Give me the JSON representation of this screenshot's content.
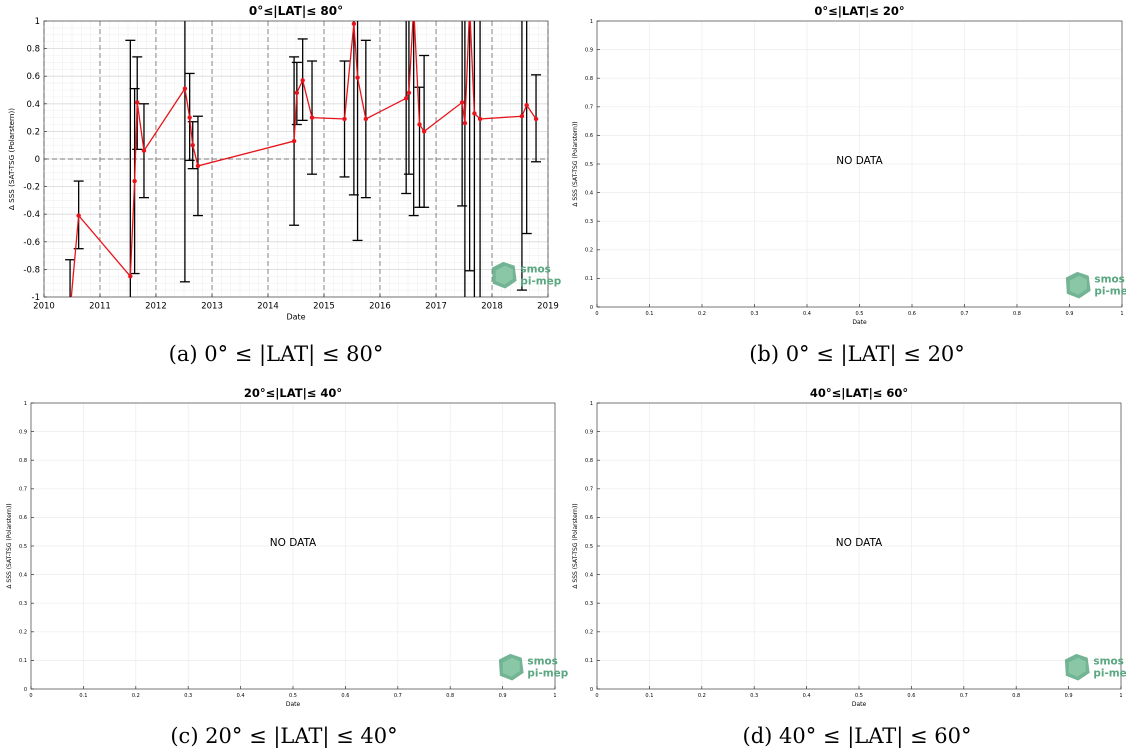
{
  "logo": {
    "line1": "smos",
    "line2": "pi-mep"
  },
  "colors": {
    "series": "#e8141b",
    "errorbar": "#000000",
    "grid_major": "#d9d9d9",
    "grid_minor": "#efefef",
    "date_line": "#7a7a7a",
    "logo": "#5aa781"
  },
  "chart_data": [
    {
      "id": "a",
      "type": "scatter",
      "title": "0°≤|LAT|≤ 80°",
      "xlabel": "Date",
      "ylabel": "Δ SSS (SAT-TSG (Polarstern))",
      "xlim": [
        "2010-01-01",
        "2019-01-01"
      ],
      "ylim": [
        -1,
        1
      ],
      "x_ticks": [
        "2010",
        "2011",
        "2012",
        "2013",
        "2014",
        "2015",
        "2016",
        "2017",
        "2018",
        "2019"
      ],
      "y_ticks": [
        "-1",
        "-0.8",
        "-0.6",
        "-0.4",
        "-0.2",
        "0",
        "0.2",
        "0.4",
        "0.6",
        "0.8",
        "1"
      ],
      "grid": true,
      "reference_line_y": 0,
      "caption": "(a) 0° ≤ |LAT| ≤ 80°",
      "series": [
        {
          "x": [
            "2010-06-20",
            "2010-08-15",
            "2011-07-18",
            "2011-08-15",
            "2011-09-01",
            "2011-10-15",
            "2012-07-08",
            "2012-08-08",
            "2012-08-28",
            "2012-10-01",
            "2014-06-20",
            "2014-07-08",
            "2014-08-15",
            "2014-10-15",
            "2015-05-15",
            "2015-07-15",
            "2015-08-08",
            "2015-10-01",
            "2016-06-20",
            "2016-07-08",
            "2016-08-08",
            "2016-09-15",
            "2016-10-15",
            "2017-06-20",
            "2017-07-08",
            "2017-08-08",
            "2017-09-08",
            "2017-10-15",
            "2018-07-15",
            "2018-08-15",
            "2018-10-15"
          ],
          "y": [
            -1.1,
            -0.41,
            -0.85,
            -0.16,
            0.41,
            0.06,
            0.51,
            0.3,
            0.1,
            -0.05,
            0.13,
            0.48,
            0.57,
            0.3,
            0.29,
            0.98,
            0.59,
            0.29,
            0.44,
            0.48,
            1.1,
            0.25,
            0.2,
            0.41,
            0.26,
            1.1,
            0.33,
            0.29,
            0.31,
            0.39,
            0.29
          ],
          "y_low": [
            -1.5,
            -0.65,
            -1.5,
            -0.83,
            0.07,
            -0.28,
            -0.89,
            -0.01,
            -0.07,
            -0.41,
            -0.48,
            0.25,
            0.28,
            -0.11,
            -0.13,
            -0.26,
            -0.59,
            -0.28,
            -0.25,
            -0.11,
            -0.41,
            -0.35,
            -0.35,
            -0.34,
            -1.2,
            -0.81,
            -1.2,
            -1.2,
            -0.95,
            -0.54,
            -0.02
          ],
          "y_high": [
            -0.73,
            -0.16,
            0.86,
            0.51,
            0.74,
            0.4,
            1.2,
            0.62,
            0.27,
            0.31,
            0.74,
            0.7,
            0.87,
            0.71,
            0.71,
            1.2,
            1.2,
            0.86,
            1.2,
            1.2,
            1.2,
            0.52,
            0.75,
            1.2,
            1.2,
            1.2,
            1.2,
            1.2,
            1.2,
            1.2,
            0.61
          ]
        }
      ]
    },
    {
      "id": "b",
      "type": "scatter",
      "title": "0°≤|LAT|≤ 20°",
      "xlabel": "Date",
      "ylabel": "Δ SSS (SAT-TSG (Polarstern))",
      "xlim": [
        0,
        1
      ],
      "ylim": [
        0,
        1
      ],
      "x_ticks": [
        "0",
        "0.1",
        "0.2",
        "0.3",
        "0.4",
        "0.5",
        "0.6",
        "0.7",
        "0.8",
        "0.9",
        "1"
      ],
      "y_ticks": [
        "0",
        "0.1",
        "0.2",
        "0.3",
        "0.4",
        "0.5",
        "0.6",
        "0.7",
        "0.8",
        "0.9",
        "1"
      ],
      "grid": true,
      "annotation": "NO DATA",
      "caption": "(b) 0° ≤ |LAT| ≤ 20°",
      "series": []
    },
    {
      "id": "c",
      "type": "scatter",
      "title": "20°≤|LAT|≤ 40°",
      "xlabel": "Date",
      "ylabel": "Δ SSS (SAT-TSG (Polarstern))",
      "xlim": [
        0,
        1
      ],
      "ylim": [
        0,
        1
      ],
      "x_ticks": [
        "0",
        "0.1",
        "0.2",
        "0.3",
        "0.4",
        "0.5",
        "0.6",
        "0.7",
        "0.8",
        "0.9",
        "1"
      ],
      "y_ticks": [
        "0",
        "0.1",
        "0.2",
        "0.3",
        "0.4",
        "0.5",
        "0.6",
        "0.7",
        "0.8",
        "0.9",
        "1"
      ],
      "grid": true,
      "annotation": "NO DATA",
      "caption": "(c) 20° ≤ |LAT| ≤ 40°",
      "series": []
    },
    {
      "id": "d",
      "type": "scatter",
      "title": "40°≤|LAT|≤ 60°",
      "xlabel": "Date",
      "ylabel": "Δ SSS (SAT-TSG (Polarstern))",
      "xlim": [
        0,
        1
      ],
      "ylim": [
        0,
        1
      ],
      "x_ticks": [
        "0",
        "0.1",
        "0.2",
        "0.3",
        "0.4",
        "0.5",
        "0.6",
        "0.7",
        "0.8",
        "0.9",
        "1"
      ],
      "y_ticks": [
        "0",
        "0.1",
        "0.2",
        "0.3",
        "0.4",
        "0.5",
        "0.6",
        "0.7",
        "0.8",
        "0.9",
        "1"
      ],
      "grid": true,
      "annotation": "NO DATA",
      "caption": "(d) 40° ≤ |LAT| ≤ 60°",
      "series": []
    }
  ]
}
